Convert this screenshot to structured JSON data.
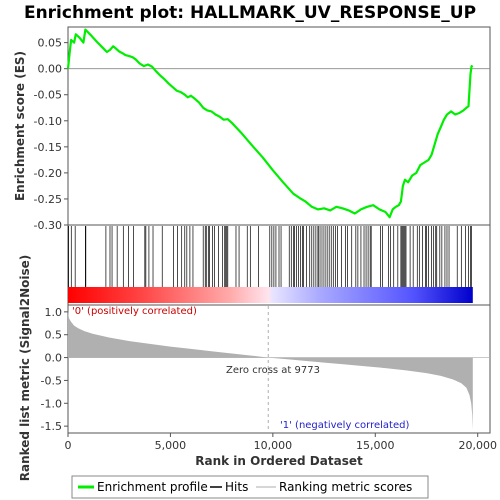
{
  "chart_data": {
    "type": "line",
    "title": "Enrichment plot: HALLMARK_UV_RESPONSE_UP",
    "colors": {
      "profile": "#00ee00",
      "hits": "#000000",
      "metric": "#b0b0b0",
      "positive": "#ff0000",
      "negative": "#0000ff",
      "positive_label": "#cc0000",
      "negative_label": "#2222cc"
    },
    "top_panel": {
      "ylabel": "Enrichment score (ES)",
      "ylim": [
        -0.3,
        0.08
      ],
      "yticks": [
        0.05,
        0.0,
        -0.05,
        -0.1,
        -0.15,
        -0.2,
        -0.25,
        -0.3
      ],
      "ytick_labels": [
        "0.05",
        "0.00",
        "-0.05",
        "-0.10",
        "-0.15",
        "-0.20",
        "-0.25",
        "-0.30"
      ],
      "series_name": "Enrichment profile",
      "profile": [
        [
          0,
          0.0
        ],
        [
          80,
          0.03
        ],
        [
          150,
          0.055
        ],
        [
          300,
          0.05
        ],
        [
          380,
          0.066
        ],
        [
          550,
          0.06
        ],
        [
          750,
          0.05
        ],
        [
          850,
          0.075
        ],
        [
          1100,
          0.065
        ],
        [
          1400,
          0.052
        ],
        [
          1700,
          0.04
        ],
        [
          1900,
          0.032
        ],
        [
          2050,
          0.036
        ],
        [
          2200,
          0.043
        ],
        [
          2300,
          0.04
        ],
        [
          2500,
          0.033
        ],
        [
          2650,
          0.03
        ],
        [
          2800,
          0.026
        ],
        [
          3000,
          0.024
        ],
        [
          3150,
          0.022
        ],
        [
          3300,
          0.018
        ],
        [
          3500,
          0.01
        ],
        [
          3700,
          0.005
        ],
        [
          3900,
          0.008
        ],
        [
          4100,
          0.004
        ],
        [
          4300,
          -0.005
        ],
        [
          4500,
          -0.013
        ],
        [
          4700,
          -0.02
        ],
        [
          4900,
          -0.028
        ],
        [
          5100,
          -0.035
        ],
        [
          5300,
          -0.042
        ],
        [
          5500,
          -0.045
        ],
        [
          5700,
          -0.05
        ],
        [
          5850,
          -0.055
        ],
        [
          6000,
          -0.052
        ],
        [
          6200,
          -0.058
        ],
        [
          6400,
          -0.065
        ],
        [
          6600,
          -0.075
        ],
        [
          6800,
          -0.08
        ],
        [
          7000,
          -0.082
        ],
        [
          7200,
          -0.088
        ],
        [
          7400,
          -0.092
        ],
        [
          7600,
          -0.098
        ],
        [
          7800,
          -0.097
        ],
        [
          8000,
          -0.104
        ],
        [
          8500,
          -0.125
        ],
        [
          9000,
          -0.148
        ],
        [
          9500,
          -0.17
        ],
        [
          10000,
          -0.195
        ],
        [
          10500,
          -0.218
        ],
        [
          11000,
          -0.24
        ],
        [
          11300,
          -0.248
        ],
        [
          11600,
          -0.255
        ],
        [
          11900,
          -0.265
        ],
        [
          12200,
          -0.27
        ],
        [
          12500,
          -0.268
        ],
        [
          12800,
          -0.272
        ],
        [
          13100,
          -0.265
        ],
        [
          13400,
          -0.268
        ],
        [
          13700,
          -0.272
        ],
        [
          14000,
          -0.278
        ],
        [
          14300,
          -0.27
        ],
        [
          14600,
          -0.265
        ],
        [
          14900,
          -0.262
        ],
        [
          15200,
          -0.27
        ],
        [
          15500,
          -0.275
        ],
        [
          15700,
          -0.285
        ],
        [
          15850,
          -0.27
        ],
        [
          16000,
          -0.265
        ],
        [
          16150,
          -0.262
        ],
        [
          16250,
          -0.255
        ],
        [
          16350,
          -0.225
        ],
        [
          16450,
          -0.213
        ],
        [
          16600,
          -0.218
        ],
        [
          16800,
          -0.205
        ],
        [
          17000,
          -0.2
        ],
        [
          17200,
          -0.185
        ],
        [
          17400,
          -0.18
        ],
        [
          17600,
          -0.175
        ],
        [
          17750,
          -0.165
        ],
        [
          17900,
          -0.145
        ],
        [
          18050,
          -0.125
        ],
        [
          18200,
          -0.112
        ],
        [
          18350,
          -0.098
        ],
        [
          18500,
          -0.088
        ],
        [
          18700,
          -0.082
        ],
        [
          18900,
          -0.088
        ],
        [
          19100,
          -0.085
        ],
        [
          19300,
          -0.08
        ],
        [
          19450,
          -0.075
        ],
        [
          19550,
          -0.072
        ],
        [
          19650,
          -0.01
        ],
        [
          19700,
          0.005
        ],
        [
          19750,
          0.003
        ]
      ]
    },
    "hits_panel": {
      "series_name": "Hits",
      "hit_positions": [
        30,
        160,
        350,
        850,
        870,
        1850,
        2050,
        2150,
        2400,
        2700,
        2950,
        3200,
        3750,
        3800,
        3950,
        4150,
        4600,
        5150,
        5350,
        5550,
        5700,
        5800,
        5950,
        6100,
        6600,
        6700,
        6750,
        6850,
        6900,
        7050,
        7150,
        7350,
        7550,
        7650,
        7700,
        7750,
        7800,
        8200,
        8350,
        8750,
        8900,
        9300,
        9850,
        9950,
        10050,
        10150,
        10300,
        10400,
        10800,
        10900,
        11000,
        11050,
        11150,
        11250,
        11350,
        11450,
        11500,
        11650,
        11800,
        11900,
        12000,
        12100,
        12200,
        12250,
        12350,
        12450,
        12550,
        12650,
        12750,
        12850,
        12950,
        13050,
        13150,
        13350,
        13550,
        13650,
        13850,
        14050,
        14150,
        14300,
        14450,
        14550,
        14650,
        14750,
        14800,
        15250,
        15350,
        15650,
        15750,
        15900,
        16100,
        16250,
        16300,
        16350,
        16400,
        16450,
        16500,
        16700,
        16850,
        17050,
        17150,
        17300,
        17450,
        17500,
        17600,
        17750,
        17850,
        17950,
        18000,
        18150,
        18250,
        18400,
        18500,
        18600,
        19000,
        19200,
        19400,
        19550,
        19650,
        19700
      ]
    },
    "bottom_panel": {
      "ylabel": "Ranked list metric (Signal2Noise)",
      "xlabel": "Rank in Ordered Dataset",
      "series_name": "Ranking metric scores",
      "ylim": [
        -1.65,
        1.15
      ],
      "yticks": [
        1.0,
        0.5,
        0.0,
        -0.5,
        -1.0,
        -1.5
      ],
      "ytick_labels": [
        "1.0",
        "0.5",
        "0.0",
        "-0.5",
        "-1.0",
        "-1.5"
      ],
      "metric": [
        [
          0,
          1.05
        ],
        [
          20,
          0.92
        ],
        [
          60,
          0.85
        ],
        [
          150,
          0.78
        ],
        [
          300,
          0.7
        ],
        [
          500,
          0.64
        ],
        [
          800,
          0.58
        ],
        [
          1200,
          0.52
        ],
        [
          2000,
          0.44
        ],
        [
          3000,
          0.36
        ],
        [
          4000,
          0.3
        ],
        [
          5000,
          0.24
        ],
        [
          6000,
          0.19
        ],
        [
          7000,
          0.14
        ],
        [
          8000,
          0.09
        ],
        [
          9000,
          0.04
        ],
        [
          9773,
          0.0
        ],
        [
          10500,
          -0.03
        ],
        [
          11500,
          -0.07
        ],
        [
          12500,
          -0.11
        ],
        [
          13500,
          -0.15
        ],
        [
          14500,
          -0.19
        ],
        [
          15500,
          -0.23
        ],
        [
          16500,
          -0.28
        ],
        [
          17500,
          -0.34
        ],
        [
          18200,
          -0.4
        ],
        [
          18800,
          -0.48
        ],
        [
          19200,
          -0.56
        ],
        [
          19450,
          -0.66
        ],
        [
          19600,
          -0.82
        ],
        [
          19680,
          -1.0
        ],
        [
          19730,
          -1.25
        ],
        [
          19760,
          -1.58
        ]
      ],
      "zero_cross_label": "Zero cross at 9773",
      "zero_cross_rank": 9773,
      "positive_label": "'0' (positively correlated)",
      "negative_label": "'1' (negatively correlated)"
    },
    "x_axis": {
      "xlim": [
        0,
        20600
      ],
      "ranked_list_length": 19760,
      "ticks": [
        0,
        5000,
        10000,
        15000,
        20000
      ],
      "tick_labels": [
        "0",
        "5,000",
        "10,000",
        "15,000",
        "20,000"
      ]
    },
    "legend": {
      "placement": "bottom",
      "items": [
        "Enrichment profile",
        "Hits",
        "Ranking metric scores"
      ]
    }
  }
}
